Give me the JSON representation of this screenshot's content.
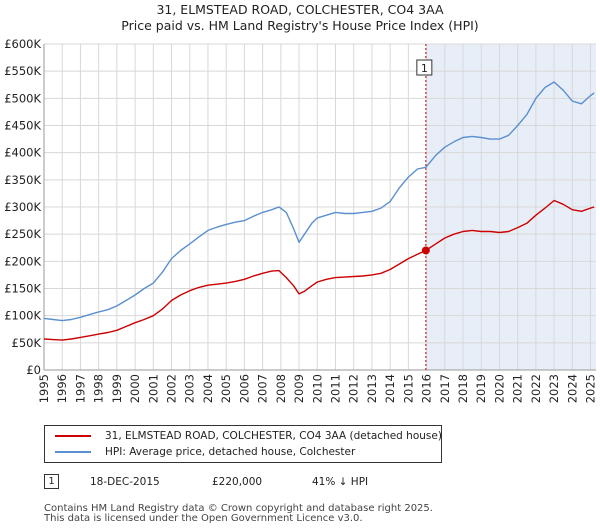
{
  "chart_data": {
    "type": "line",
    "title": "31, ELMSTEAD ROAD, COLCHESTER, CO4 3AA",
    "subtitle": "Price paid vs. HM Land Registry's House Price Index (HPI)",
    "xlim": [
      1995,
      2025.3
    ],
    "ylim": [
      0,
      600000
    ],
    "x_ticks": [
      "1995",
      "1996",
      "1997",
      "1998",
      "1999",
      "2000",
      "2001",
      "2002",
      "2003",
      "2004",
      "2005",
      "2006",
      "2007",
      "2008",
      "2009",
      "2010",
      "2011",
      "2012",
      "2013",
      "2014",
      "2015",
      "2016",
      "2017",
      "2018",
      "2019",
      "2020",
      "2021",
      "2022",
      "2023",
      "2024",
      "2025"
    ],
    "y_ticks": [
      {
        "value": 0,
        "label": "£0"
      },
      {
        "value": 50000,
        "label": "£50K"
      },
      {
        "value": 100000,
        "label": "£100K"
      },
      {
        "value": 150000,
        "label": "£150K"
      },
      {
        "value": 200000,
        "label": "£200K"
      },
      {
        "value": 250000,
        "label": "£250K"
      },
      {
        "value": 300000,
        "label": "£300K"
      },
      {
        "value": 350000,
        "label": "£350K"
      },
      {
        "value": 400000,
        "label": "£400K"
      },
      {
        "value": 450000,
        "label": "£450K"
      },
      {
        "value": 500000,
        "label": "£500K"
      },
      {
        "value": 550000,
        "label": "£550K"
      },
      {
        "value": 600000,
        "label": "£600K"
      }
    ],
    "grid": true,
    "series": [
      {
        "name": "31, ELMSTEAD ROAD, COLCHESTER, CO4 3AA (detached house)",
        "color": "#cc0000",
        "x": [
          1995.0,
          1995.5,
          1996.0,
          1996.5,
          1997.0,
          1997.5,
          1998.0,
          1998.5,
          1999.0,
          1999.5,
          2000.0,
          2000.5,
          2001.0,
          2001.5,
          2002.0,
          2002.5,
          2003.0,
          2003.5,
          2004.0,
          2004.5,
          2005.0,
          2005.5,
          2006.0,
          2006.5,
          2007.0,
          2007.5,
          2007.9,
          2008.3,
          2008.7,
          2009.0,
          2009.3,
          2009.7,
          2010.0,
          2010.5,
          2011.0,
          2011.5,
          2012.0,
          2012.5,
          2013.0,
          2013.5,
          2014.0,
          2014.5,
          2015.0,
          2015.5,
          2015.96,
          2016.5,
          2017.0,
          2017.5,
          2018.0,
          2018.5,
          2019.0,
          2019.5,
          2020.0,
          2020.5,
          2021.0,
          2021.5,
          2022.0,
          2022.5,
          2023.0,
          2023.5,
          2024.0,
          2024.5,
          2025.0,
          2025.2
        ],
        "y": [
          57000,
          56000,
          55000,
          57000,
          60000,
          63000,
          66000,
          69000,
          73000,
          80000,
          87000,
          93000,
          100000,
          112000,
          128000,
          138000,
          146000,
          152000,
          156000,
          158000,
          160000,
          163000,
          167000,
          173000,
          178000,
          182000,
          183000,
          170000,
          155000,
          140000,
          145000,
          155000,
          162000,
          167000,
          170000,
          171000,
          172000,
          173000,
          175000,
          178000,
          185000,
          195000,
          205000,
          213000,
          220000,
          232000,
          243000,
          250000,
          255000,
          257000,
          255000,
          255000,
          253000,
          255000,
          262000,
          270000,
          285000,
          298000,
          312000,
          305000,
          295000,
          292000,
          298000,
          300000
        ]
      },
      {
        "name": "HPI: Average price, detached house, Colchester",
        "color": "#5b8fcf",
        "x": [
          1995.0,
          1995.5,
          1996.0,
          1996.5,
          1997.0,
          1997.5,
          1998.0,
          1998.5,
          1999.0,
          1999.5,
          2000.0,
          2000.5,
          2001.0,
          2001.5,
          2002.0,
          2002.5,
          2003.0,
          2003.5,
          2004.0,
          2004.5,
          2005.0,
          2005.5,
          2006.0,
          2006.5,
          2007.0,
          2007.5,
          2007.9,
          2008.3,
          2008.7,
          2009.0,
          2009.3,
          2009.7,
          2010.0,
          2010.5,
          2011.0,
          2011.5,
          2012.0,
          2012.5,
          2013.0,
          2013.5,
          2014.0,
          2014.5,
          2015.0,
          2015.5,
          2015.96,
          2016.5,
          2017.0,
          2017.5,
          2018.0,
          2018.5,
          2019.0,
          2019.5,
          2020.0,
          2020.5,
          2021.0,
          2021.5,
          2022.0,
          2022.5,
          2023.0,
          2023.5,
          2024.0,
          2024.5,
          2025.0,
          2025.2
        ],
        "y": [
          95000,
          93000,
          91000,
          93000,
          97000,
          102000,
          107000,
          111000,
          118000,
          128000,
          138000,
          150000,
          160000,
          180000,
          205000,
          220000,
          232000,
          245000,
          257000,
          263000,
          268000,
          272000,
          275000,
          283000,
          290000,
          295000,
          300000,
          290000,
          260000,
          235000,
          250000,
          270000,
          280000,
          285000,
          290000,
          288000,
          288000,
          290000,
          292000,
          298000,
          310000,
          335000,
          355000,
          370000,
          373000,
          395000,
          410000,
          420000,
          428000,
          430000,
          428000,
          425000,
          425000,
          432000,
          450000,
          470000,
          500000,
          520000,
          530000,
          515000,
          495000,
          490000,
          505000,
          510000
        ]
      }
    ],
    "annotations": [
      {
        "label": "1",
        "x": 2015.96,
        "y": 220000,
        "note": "sale marker with vertical dashed line"
      }
    ],
    "shaded_region": {
      "from_x": 2015.96,
      "to_x": 2025.3
    }
  },
  "legend": {
    "property_label": "31, ELMSTEAD ROAD, COLCHESTER, CO4 3AA (detached house)",
    "hpi_label": "HPI: Average price, detached house, Colchester"
  },
  "transactions": [
    {
      "marker": "1",
      "date": "18-DEC-2015",
      "price": "£220,000",
      "vs_hpi": "41% ↓ HPI"
    }
  ],
  "footer": {
    "line1": "Contains HM Land Registry data © Crown copyright and database right 2025.",
    "line2": "This data is licensed under the Open Government Licence v3.0."
  }
}
